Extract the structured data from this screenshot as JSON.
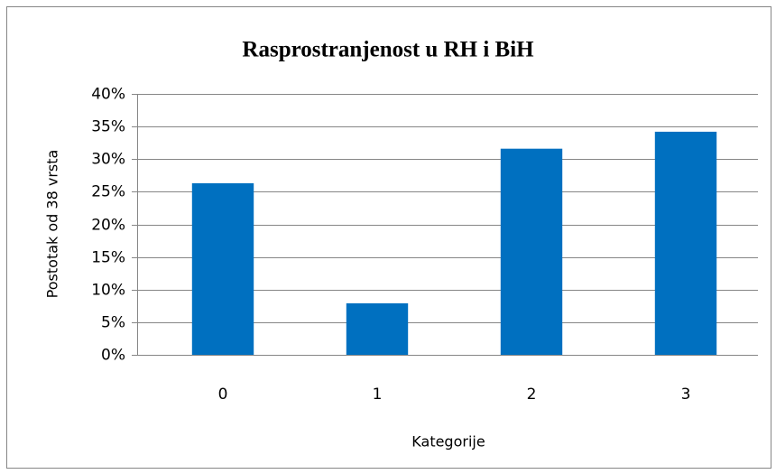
{
  "chart_data": {
    "type": "bar",
    "title": "Rasprostranjenost u RH  i BiH",
    "x_label": "Kategorije",
    "y_label": "Postotak od 38 vrsta",
    "categories": [
      "0",
      "1",
      "2",
      "3"
    ],
    "values": [
      26.3,
      7.9,
      31.6,
      34.2
    ],
    "color": "#0070c0",
    "ylim": [
      0,
      40
    ],
    "yticks": [
      {
        "value": 0,
        "label": "0%"
      },
      {
        "value": 5,
        "label": "5%"
      },
      {
        "value": 10,
        "label": "10%"
      },
      {
        "value": 15,
        "label": "15%"
      },
      {
        "value": 20,
        "label": "20%"
      },
      {
        "value": 25,
        "label": "25%"
      },
      {
        "value": 30,
        "label": "30%"
      },
      {
        "value": 35,
        "label": "35%"
      },
      {
        "value": 40,
        "label": "40%"
      }
    ],
    "grid": true
  }
}
